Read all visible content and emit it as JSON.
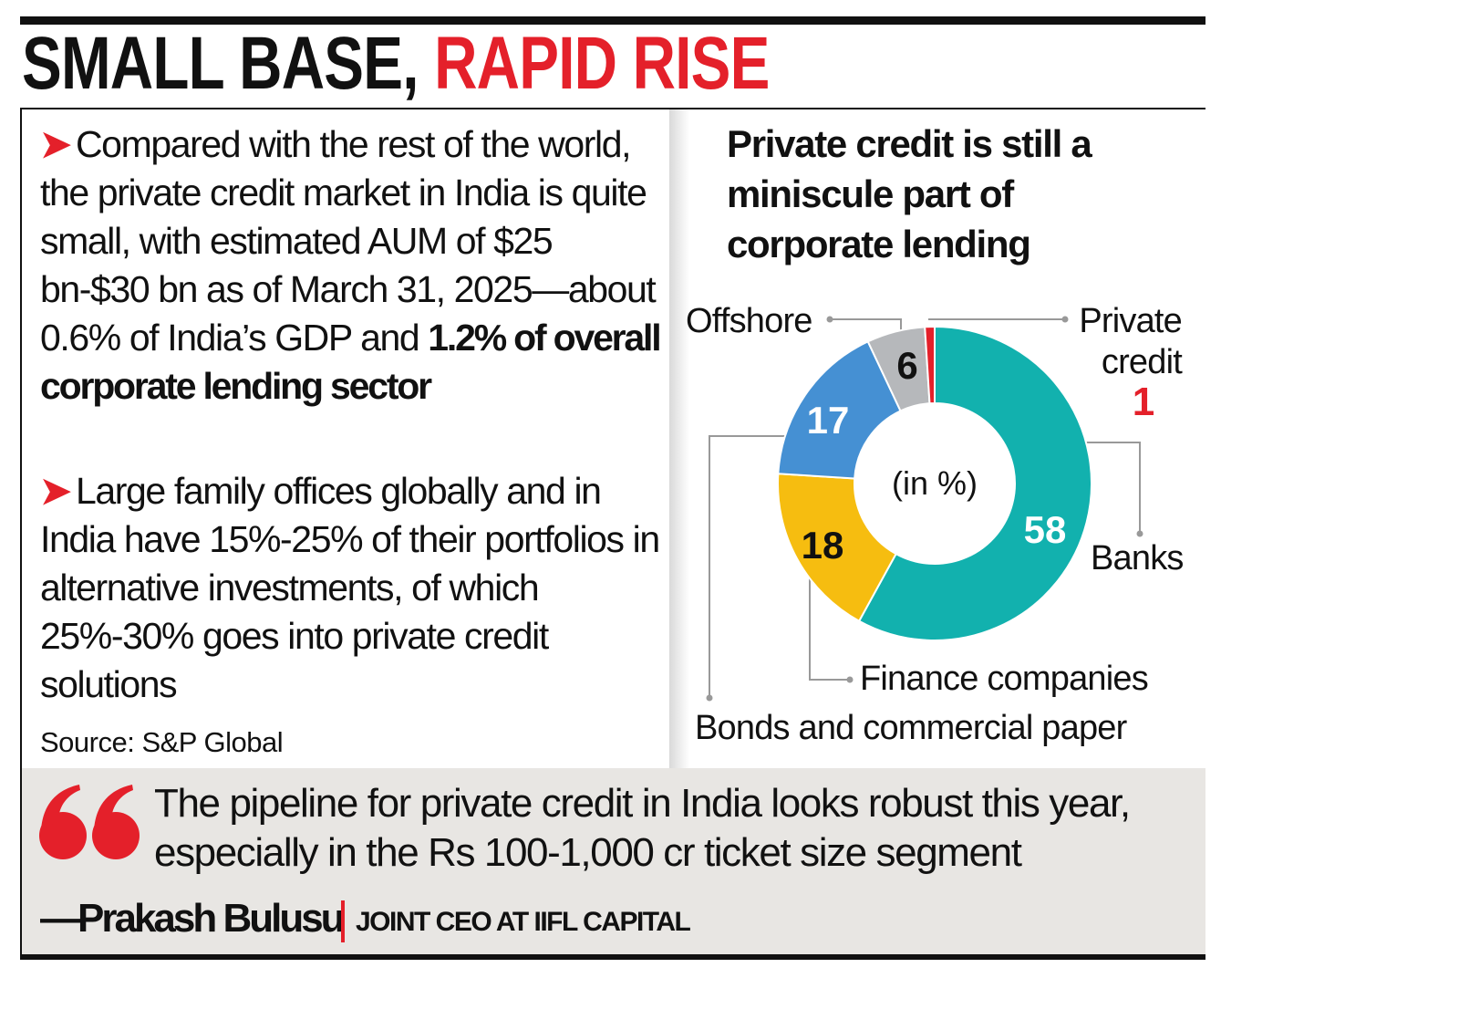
{
  "header": {
    "title_black": "SMALL BASE,",
    "title_red": "RAPID RISE"
  },
  "left": {
    "bullets": [
      {
        "text": "Compared with the rest of the world, the private credit market in India is quite small, with estimated AUM of $25 bn-$30 bn as of March 31, 2025—about 0.6% of India’s GDP and ",
        "bold": "1.2% of overall corporate lending sector"
      },
      {
        "text": "Large family offices globally and in India have 15%-25% of their portfolios in alternative investments, of which 25%-30% goes into private credit solutions",
        "bold": ""
      }
    ],
    "source": "Source: S&P Global"
  },
  "chart_data": {
    "type": "pie",
    "subtype": "donut",
    "title": "Private credit is still a miniscule part of corporate lending",
    "center_label": "(in %)",
    "categories": [
      "Banks",
      "Finance companies",
      "Bonds and commercial paper",
      "Offshore",
      "Private credit"
    ],
    "values": [
      58,
      18,
      17,
      6,
      1
    ],
    "value_labels": [
      "58",
      "18",
      "17",
      "6",
      "1"
    ],
    "colors": [
      "#12b1ae",
      "#f6bd10",
      "#4590d3",
      "#b6b8bb",
      "#e4202a"
    ],
    "start": "top",
    "direction": "clockwise"
  },
  "quote": {
    "text": "The pipeline for private credit in India looks robust this year, especially in the Rs 100-1,000 cr ticket size segment",
    "name": "—Prakash Bulusu",
    "role": "JOINT CEO AT IIFL CAPITAL"
  },
  "colors": {
    "accent": "#e4202a",
    "quote_bg": "#e8e6e3"
  }
}
